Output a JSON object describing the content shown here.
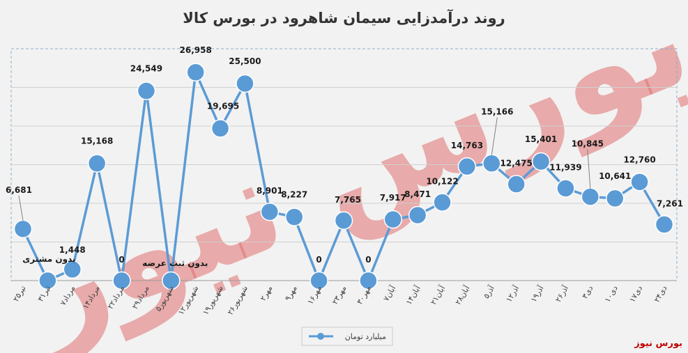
{
  "chart_data": {
    "type": "line",
    "title": "روند درآمدزایی سیمان شاهرود در بورس کالا",
    "categories": [
      "۲۵تیر",
      "۳۱تیر",
      "۷مرداد",
      "۱۴مرداد",
      "۲۲مرداد",
      "۲۹مرداد",
      "۵شهریور",
      "۱۲شهریور",
      "۱۹شهریور",
      "۲۶شهریور",
      "۲مهر",
      "۹مهر",
      "۱۶مهر",
      "۲۳مهر",
      "۳۰مهر",
      "۷آبان",
      "۱۴آبان",
      "۲۱آبان",
      "۲۸آبان",
      "۵آذر",
      "۱۲آذر",
      "۱۹آذر",
      "۲۶آذر",
      "۳دی",
      "۱۰دی",
      "۱۷دی",
      "۲۴دی"
    ],
    "series": [
      {
        "name": "میلیارد تومان",
        "color": "#5b9bd5",
        "values": [
          6681,
          0,
          1448,
          15168,
          0,
          24549,
          0,
          26958,
          19695,
          25500,
          8901,
          8227,
          0,
          7765,
          0,
          7917,
          8471,
          10122,
          14763,
          15166,
          12475,
          15401,
          11939,
          10845,
          10641,
          12760,
          7261
        ],
        "labels": [
          "6,681",
          "",
          "1,448",
          "15,168",
          "0",
          "24,549",
          "",
          "26,958",
          "19,695",
          "25,500",
          "8,901",
          "8,227",
          "0",
          "7,765",
          "0",
          "7,917",
          "8,471",
          "10,122",
          "14,763",
          "15,166",
          "12,475",
          "15,401",
          "11,939",
          "10,845",
          "10,641",
          "12,760",
          "7,261"
        ]
      }
    ],
    "annotations": [
      "بدون مشتری",
      "بدون ثبت عرضه"
    ],
    "ylim": [
      0,
      30000
    ],
    "grid": true,
    "legend": "bottom"
  },
  "watermark": "بورس نیوز",
  "brand": "بورس نیوز"
}
